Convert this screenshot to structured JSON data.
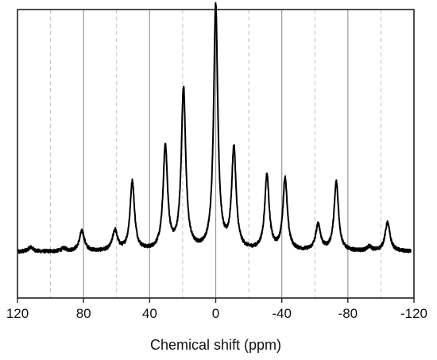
{
  "chart_data": {
    "type": "line",
    "title": "",
    "xlabel": "Chemical shift (ppm)",
    "ylabel": "",
    "x_reversed": true,
    "xlim": [
      120,
      -120
    ],
    "ylim": [
      0,
      1
    ],
    "x_tick_labels": [
      "120",
      "80",
      "40",
      "0",
      "-40",
      "-80",
      "-120"
    ],
    "x_ticks": [
      120,
      80,
      40,
      0,
      -40,
      -80,
      -120
    ],
    "grid": {
      "solid_vertical_lines_at": [
        80,
        40,
        0,
        -40,
        -80
      ],
      "dashed_vertical_lines_at": [
        100,
        60,
        20,
        -20,
        -60,
        -100
      ]
    },
    "legend": "none",
    "baseline_intensity": 0.16,
    "baseline_noise": 0.006,
    "peaks": [
      {
        "x": 112,
        "intensity": 0.015,
        "width": 1.8
      },
      {
        "x": 92,
        "intensity": 0.01,
        "width": 1.8
      },
      {
        "x": 81,
        "intensity": 0.07,
        "width": 1.8
      },
      {
        "x": 61,
        "intensity": 0.07,
        "width": 1.8
      },
      {
        "x": 50.5,
        "intensity": 0.24,
        "width": 1.6
      },
      {
        "x": 30.5,
        "intensity": 0.36,
        "width": 1.6
      },
      {
        "x": 19.5,
        "intensity": 0.56,
        "width": 1.6
      },
      {
        "x": 0,
        "intensity": 0.85,
        "width": 1.5
      },
      {
        "x": -11,
        "intensity": 0.35,
        "width": 1.6
      },
      {
        "x": -31,
        "intensity": 0.26,
        "width": 1.6
      },
      {
        "x": -42,
        "intensity": 0.25,
        "width": 1.6
      },
      {
        "x": -62,
        "intensity": 0.09,
        "width": 1.8
      },
      {
        "x": -73,
        "intensity": 0.24,
        "width": 1.6
      },
      {
        "x": -93,
        "intensity": 0.015,
        "width": 1.8
      },
      {
        "x": -104,
        "intensity": 0.1,
        "width": 1.8
      }
    ],
    "colors": {
      "line": "#000000",
      "frame": "#222222",
      "grid_solid": "#9a9a9a",
      "grid_dashed": "#c2c2c2"
    }
  }
}
